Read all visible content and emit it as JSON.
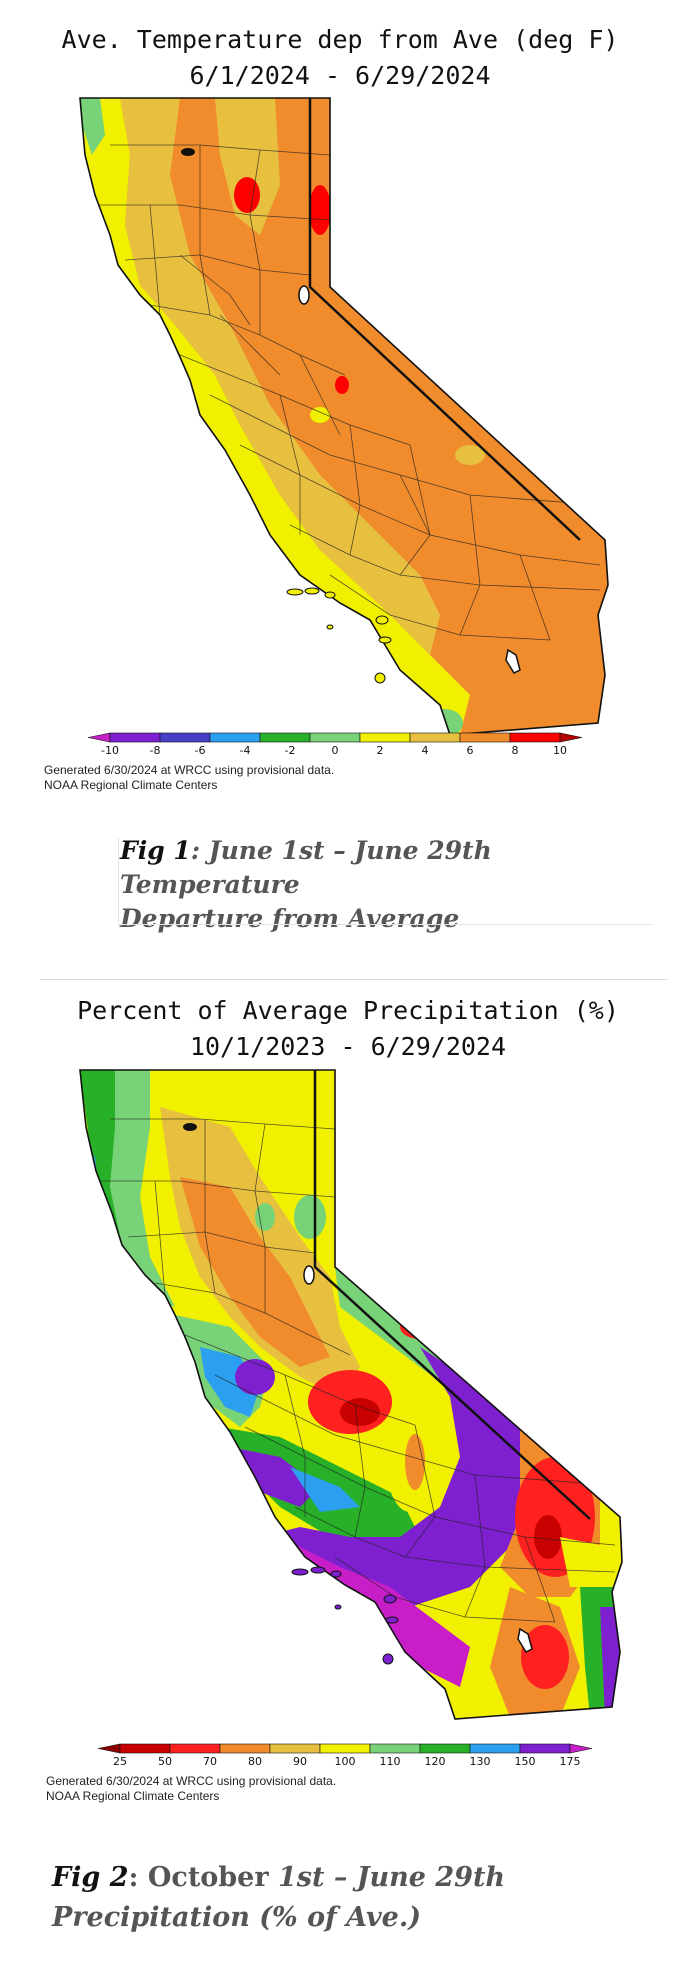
{
  "fig1": {
    "title_line1": "Ave. Temperature dep from Ave (deg F)",
    "title_line2": "6/1/2024 - 6/29/2024",
    "colorbar_ticks": [
      "-10",
      "-8",
      "-6",
      "-4",
      "-2",
      "0",
      "2",
      "4",
      "6",
      "8",
      "10"
    ],
    "colorbar_colors": [
      "#c81ec8",
      "#7e1fd0",
      "#4640c8",
      "#2ca0f0",
      "#28b028",
      "#78d278",
      "#f0f000",
      "#e8c040",
      "#f08c2c",
      "#ff0000",
      "#b40000"
    ],
    "generated_line1": "Generated 6/30/2024 at WRCC using provisional data.",
    "generated_line2": "NOAA Regional Climate Centers",
    "caption_prefix": "Fig 1",
    "caption_line1_rest": ": June 1st – June 29th Temperature",
    "caption_line2": "Departure from Average"
  },
  "fig2": {
    "title_line1": "Percent of Average Precipitation (%)",
    "title_line2": "10/1/2023 - 6/29/2024",
    "colorbar_ticks": [
      "25",
      "50",
      "70",
      "80",
      "90",
      "100",
      "110",
      "120",
      "130",
      "150",
      "175"
    ],
    "colorbar_colors": [
      "#8c0000",
      "#c80000",
      "#ff2020",
      "#f08c2c",
      "#e8c040",
      "#f0f000",
      "#78d278",
      "#28b028",
      "#2ca0f0",
      "#7e1fd0",
      "#c81ec8"
    ],
    "generated_line1": "Generated 6/30/2024 at WRCC using provisional data.",
    "generated_line2": "NOAA Regional Climate Centers",
    "caption_prefix": "Fig 2",
    "caption_mid": ": October ",
    "caption_rest": "1st – June 29th",
    "caption_line2": "Precipitation (% of Ave.)"
  }
}
